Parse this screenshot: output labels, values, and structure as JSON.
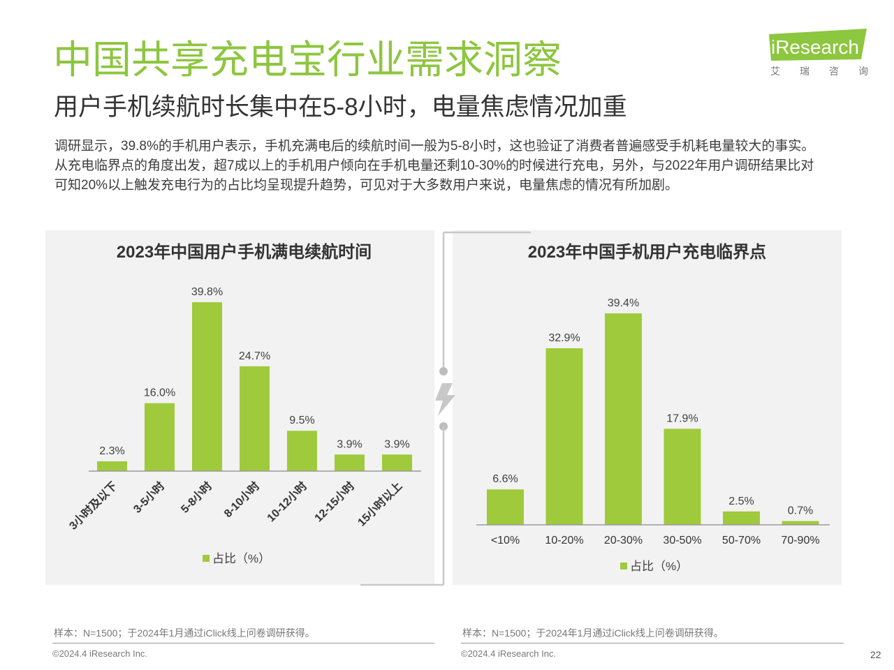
{
  "header": {
    "title": "中国共享充电宝行业需求洞察",
    "subtitle": "用户手机续航时长集中在5-8小时，电量焦虑情况加重",
    "logo_text": "iResearch",
    "logo_cn": "艾 瑞 咨 询"
  },
  "summary": {
    "lines": [
      "调研显示，39.8%的手机用户表示，手机充满电后的续航时间一般为5-8小时，这也验证了消费者普遍感受手机耗电量较大的事实。",
      "从充电临界点的角度出发，超7成以上的手机用户倾向在手机电量还剩10-30%的时候进行充电，另外，与2022年用户调研结果比对",
      "可知20%以上触发充电行为的占比均呈现提升趋势，可见对于大多数用户来说，电量焦虑的情况有所加剧。"
    ]
  },
  "divider": {
    "icon": "lightning-icon"
  },
  "footer": {
    "sources": [
      {
        "note": "样本：N=1500；于2024年1月通过iClick线上问卷调研获得。",
        "copyright": "©2024.4 iResearch Inc."
      },
      {
        "note": "样本：N=1500；于2024年1月通过iClick线上问卷调研获得。",
        "copyright": "©2024.4 iResearch Inc."
      }
    ],
    "page_number": "22"
  },
  "colors": {
    "accent": "#8dc63f",
    "bar": "#9fca3c",
    "panel": "#f2f2f2",
    "divider": "#c8c8c8"
  },
  "chart_data": [
    {
      "type": "bar",
      "title": "2023年中国用户手机满电续航时间",
      "categories": [
        "3小时及以下",
        "3-5小时",
        "5-8小时",
        "8-10小时",
        "10-12小时",
        "12-15小时",
        "15小时以上"
      ],
      "series": [
        {
          "name": "占比（%）",
          "values": [
            2.3,
            16.0,
            39.8,
            24.7,
            9.5,
            3.9,
            3.9
          ]
        }
      ],
      "value_suffix": "%",
      "xlabel": "",
      "ylabel": "",
      "grid": false,
      "legend": "bottom"
    },
    {
      "type": "bar",
      "title": "2023年中国手机用户充电临界点",
      "categories": [
        "<10%",
        "10-20%",
        "20-30%",
        "30-50%",
        "50-70%",
        "70-90%"
      ],
      "series": [
        {
          "name": "占比（%）",
          "values": [
            6.6,
            32.9,
            39.4,
            17.9,
            2.5,
            0.7
          ]
        }
      ],
      "value_suffix": "%",
      "xlabel": "",
      "ylabel": "",
      "grid": false,
      "legend": "bottom"
    }
  ]
}
